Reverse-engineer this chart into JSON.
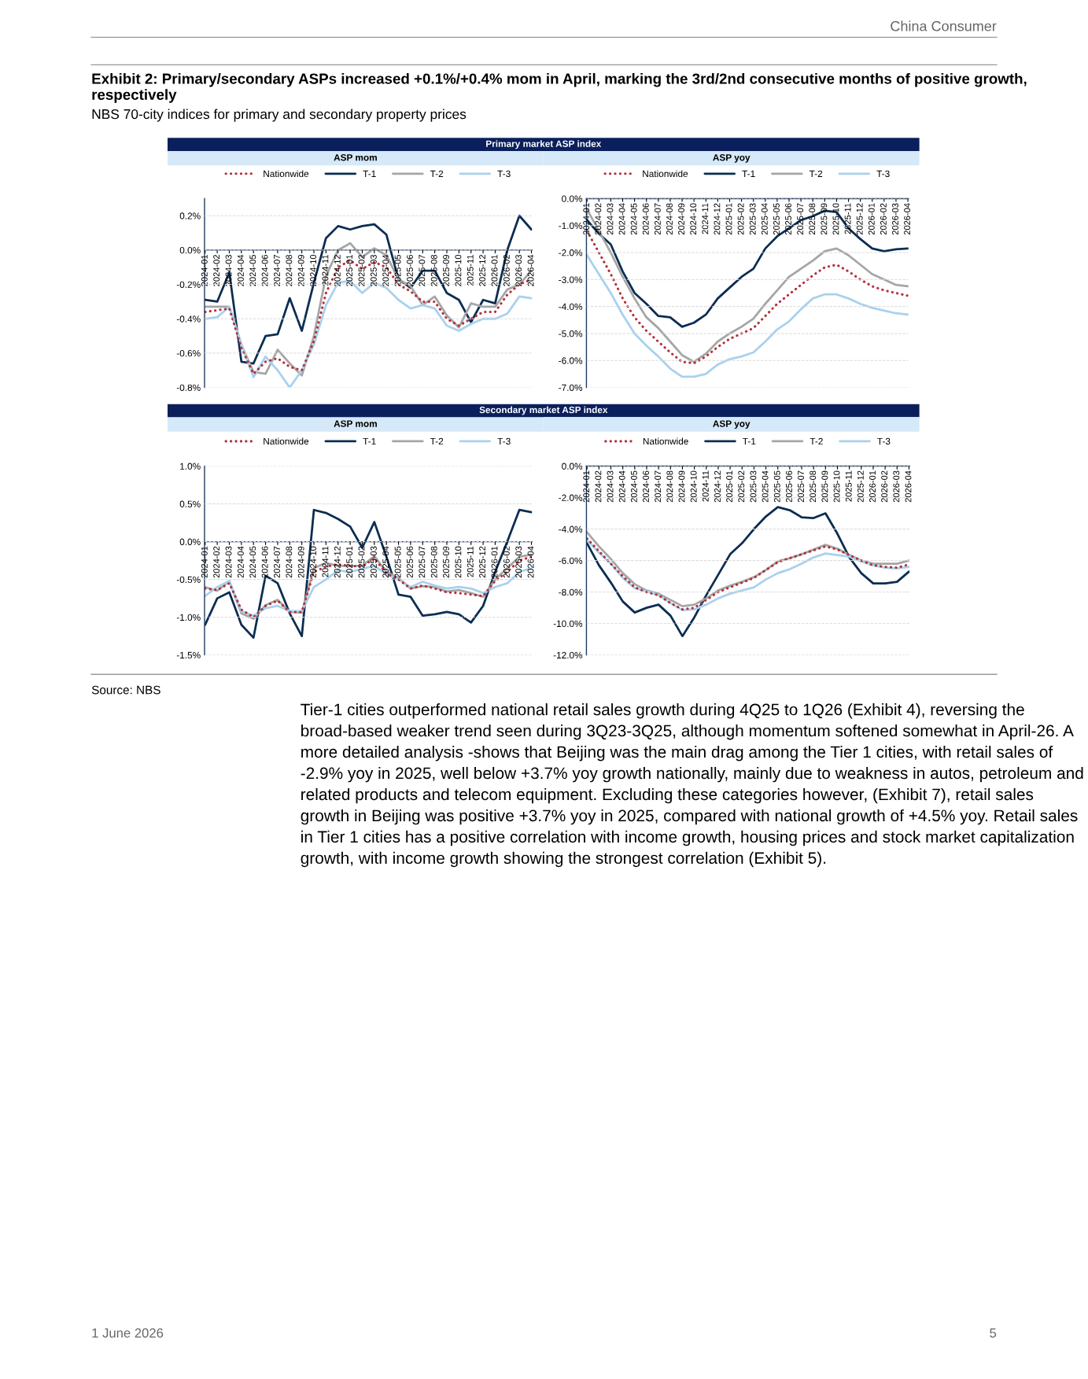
{
  "chart_data": [
    {
      "type": "line",
      "title": "ASP mom",
      "subtitle": "Primary market ASP index",
      "legend": "top",
      "grid": "y",
      "annotations": [
        "China Consumer",
        "Exhibit 2: Primary/secondary ASPs increased +0.1%/+0.4% mom in April, marking the 3rd/2nd consecutive months of positive growth, respectively",
        "NBS 70-city indices for primary and secondary property prices",
        "Source: NBS",
        "Tier-1 cities outperformed national retail sales growth during 4Q25 to 1Q26 (Exhibit 4), reversing the broad-based weaker trend seen during 3Q23-3Q25, although momentum softened somewhat in April-26. A more detailed analysis -shows that Beijing was the main drag among the Tier 1 cities, with retail sales of -2.9% yoy in 2025, well below +3.7% yoy growth nationally, mainly due to weakness in autos, petroleum and related products and telecom equipment. Excluding these categories however, (Exhibit 7), retail sales growth in Beijing was positive +3.7% yoy in 2025, compared with national growth of +4.5% yoy. Retail sales in Tier 1 cities has a positive correlation with income growth, housing prices and stock market capitalization growth, with income growth showing the strongest correlation (Exhibit 5).",
        "1 June 2026",
        "5"
      ],
      "categories": [
        "2024-01",
        "2024-02",
        "2024-03",
        "2024-04",
        "2024-05",
        "2024-06",
        "2024-07",
        "2024-08",
        "2024-09",
        "2024-10",
        "2024-11",
        "2024-12",
        "2025-01",
        "2025-02",
        "2025-03",
        "2025-04",
        "2025-05",
        "2025-06",
        "2025-07",
        "2025-08",
        "2025-09",
        "2025-10",
        "2025-11",
        "2025-12",
        "2026-01",
        "2026-02",
        "2026-03",
        "2026-04"
      ],
      "ylim": [
        -0.8,
        0.3
      ],
      "yticks": [
        {
          "value": -0.8,
          "label": "-0.8%"
        },
        {
          "value": -0.6,
          "label": "-0.6%"
        },
        {
          "value": -0.4,
          "label": "-0.4%"
        },
        {
          "value": -0.2,
          "label": "-0.2%"
        },
        {
          "value": 0,
          "label": "0.0%"
        },
        {
          "value": 0.2,
          "label": "0.2%"
        }
      ],
      "series": [
        {
          "name": "Nationwide",
          "color": "#b3303a",
          "line_style": "dotted",
          "values": [
            -0.36,
            -0.35,
            -0.34,
            -0.57,
            -0.72,
            -0.65,
            -0.63,
            -0.68,
            -0.7,
            -0.53,
            -0.25,
            -0.1,
            -0.06,
            -0.11,
            -0.07,
            -0.1,
            -0.2,
            -0.24,
            -0.3,
            -0.3,
            -0.4,
            -0.44,
            -0.4,
            -0.36,
            -0.36,
            -0.26,
            -0.2,
            -0.17
          ]
        },
        {
          "name": "T-1",
          "color": "#0b2d52",
          "line_style": "solid",
          "values": [
            -0.29,
            -0.3,
            -0.13,
            -0.65,
            -0.66,
            -0.5,
            -0.49,
            -0.28,
            -0.47,
            -0.19,
            0.07,
            0.14,
            0.12,
            0.14,
            0.15,
            0.09,
            -0.17,
            -0.22,
            -0.12,
            -0.12,
            -0.25,
            -0.29,
            -0.42,
            -0.29,
            -0.31,
            0.0,
            0.2,
            0.12
          ]
        },
        {
          "name": "T-2",
          "color": "#a6a6a6",
          "line_style": "solid",
          "values": [
            -0.33,
            -0.33,
            -0.33,
            -0.55,
            -0.71,
            -0.72,
            -0.58,
            -0.66,
            -0.73,
            -0.5,
            -0.15,
            0.0,
            0.04,
            -0.04,
            0.01,
            -0.03,
            -0.17,
            -0.21,
            -0.32,
            -0.27,
            -0.38,
            -0.45,
            -0.31,
            -0.33,
            -0.33,
            -0.23,
            -0.2,
            -0.12
          ]
        },
        {
          "name": "T-3",
          "color": "#a9d1ee",
          "line_style": "solid",
          "values": [
            -0.4,
            -0.39,
            -0.33,
            -0.55,
            -0.74,
            -0.62,
            -0.7,
            -0.8,
            -0.7,
            -0.55,
            -0.32,
            -0.19,
            -0.18,
            -0.25,
            -0.19,
            -0.22,
            -0.29,
            -0.34,
            -0.32,
            -0.34,
            -0.44,
            -0.47,
            -0.43,
            -0.4,
            -0.4,
            -0.37,
            -0.27,
            -0.28
          ]
        }
      ]
    },
    {
      "type": "line",
      "title": "ASP yoy",
      "legend": "top",
      "grid": "y",
      "categories": [
        "2024-01",
        "2024-02",
        "2024-03",
        "2024-04",
        "2024-05",
        "2024-06",
        "2024-07",
        "2024-08",
        "2024-09",
        "2024-10",
        "2024-11",
        "2024-12",
        "2025-01",
        "2025-02",
        "2025-03",
        "2025-04",
        "2025-05",
        "2025-06",
        "2025-07",
        "2025-08",
        "2025-09",
        "2025-10",
        "2025-11",
        "2025-12",
        "2026-01",
        "2026-02",
        "2026-03",
        "2026-04"
      ],
      "ylim": [
        -7,
        0
      ],
      "yticks": [
        {
          "value": -7,
          "label": "-7.0%"
        },
        {
          "value": -6,
          "label": "-6.0%"
        },
        {
          "value": -5,
          "label": "-5.0%"
        },
        {
          "value": -4,
          "label": "-4.0%"
        },
        {
          "value": -3,
          "label": "-3.0%"
        },
        {
          "value": -2,
          "label": "-2.0%"
        },
        {
          "value": -1,
          "label": "-1.0%"
        },
        {
          "value": 0,
          "label": "0.0%"
        }
      ],
      "series": [
        {
          "name": "Nationwide",
          "color": "#b3303a",
          "line_style": "dotted",
          "values": [
            -1.2,
            -2.0,
            -2.8,
            -3.7,
            -4.4,
            -4.9,
            -5.3,
            -5.7,
            -6.05,
            -6.1,
            -5.85,
            -5.5,
            -5.2,
            -5.0,
            -4.8,
            -4.35,
            -3.9,
            -3.55,
            -3.2,
            -2.85,
            -2.55,
            -2.45,
            -2.7,
            -3.0,
            -3.25,
            -3.4,
            -3.5,
            -3.6
          ]
        },
        {
          "name": "T-1",
          "color": "#0b2d52",
          "line_style": "solid",
          "values": [
            -0.8,
            -1.3,
            -1.7,
            -2.7,
            -3.5,
            -3.9,
            -4.35,
            -4.4,
            -4.75,
            -4.6,
            -4.3,
            -3.7,
            -3.3,
            -2.9,
            -2.6,
            -1.85,
            -1.4,
            -1.1,
            -0.8,
            -0.65,
            -0.45,
            -0.5,
            -1.1,
            -1.5,
            -1.85,
            -1.95,
            -1.88,
            -1.85
          ]
        },
        {
          "name": "T-2",
          "color": "#a6a6a6",
          "line_style": "solid",
          "values": [
            -0.4,
            -1.2,
            -2.0,
            -2.9,
            -3.7,
            -4.4,
            -4.8,
            -5.3,
            -5.8,
            -6.05,
            -5.75,
            -5.3,
            -5.0,
            -4.75,
            -4.45,
            -3.9,
            -3.4,
            -2.9,
            -2.6,
            -2.3,
            -1.95,
            -1.85,
            -2.1,
            -2.45,
            -2.8,
            -3.0,
            -3.2,
            -3.25
          ]
        },
        {
          "name": "T-3",
          "color": "#a9d1ee",
          "line_style": "solid",
          "values": [
            -2.1,
            -2.8,
            -3.5,
            -4.3,
            -5.0,
            -5.45,
            -5.85,
            -6.3,
            -6.6,
            -6.6,
            -6.5,
            -6.15,
            -5.95,
            -5.85,
            -5.7,
            -5.3,
            -4.85,
            -4.55,
            -4.1,
            -3.7,
            -3.55,
            -3.55,
            -3.7,
            -3.9,
            -4.05,
            -4.15,
            -4.25,
            -4.3
          ]
        }
      ]
    },
    {
      "type": "line",
      "title": "ASP mom",
      "subtitle": "Secondary market ASP index",
      "legend": "top",
      "grid": "y",
      "categories": [
        "2024-01",
        "2024-02",
        "2024-03",
        "2024-04",
        "2024-05",
        "2024-06",
        "2024-07",
        "2024-08",
        "2024-09",
        "2024-10",
        "2024-11",
        "2024-12",
        "2025-01",
        "2025-02",
        "2025-03",
        "2025-04",
        "2025-05",
        "2025-06",
        "2025-07",
        "2025-08",
        "2025-09",
        "2025-10",
        "2025-11",
        "2025-12",
        "2026-01",
        "2026-02",
        "2026-03",
        "2026-04"
      ],
      "ylim": [
        -1.5,
        1.0
      ],
      "yticks": [
        {
          "value": -1.5,
          "label": "-1.5%"
        },
        {
          "value": -1.0,
          "label": "-1.0%"
        },
        {
          "value": -0.5,
          "label": "-0.5%"
        },
        {
          "value": 0,
          "label": "0.0%"
        },
        {
          "value": 0.5,
          "label": "0.5%"
        },
        {
          "value": 1.0,
          "label": "1.0%"
        }
      ],
      "series": [
        {
          "name": "Nationwide",
          "color": "#b3303a",
          "line_style": "dotted",
          "values": [
            -0.62,
            -0.64,
            -0.55,
            -0.9,
            -1.0,
            -0.85,
            -0.78,
            -0.93,
            -0.93,
            -0.4,
            -0.33,
            -0.3,
            -0.32,
            -0.33,
            -0.22,
            -0.42,
            -0.5,
            -0.62,
            -0.58,
            -0.62,
            -0.67,
            -0.68,
            -0.7,
            -0.72,
            -0.52,
            -0.4,
            -0.25,
            -0.2
          ]
        },
        {
          "name": "T-1",
          "color": "#0b2d52",
          "line_style": "solid",
          "values": [
            -1.1,
            -0.75,
            -0.67,
            -1.1,
            -1.27,
            -0.45,
            -0.55,
            -0.95,
            -1.25,
            0.42,
            0.38,
            0.3,
            0.2,
            -0.08,
            0.26,
            -0.2,
            -0.7,
            -0.73,
            -0.98,
            -0.96,
            -0.93,
            -0.96,
            -1.07,
            -0.85,
            -0.4,
            0.0,
            0.42,
            0.39
          ]
        },
        {
          "name": "T-2",
          "color": "#a6a6a6",
          "line_style": "solid",
          "values": [
            -0.6,
            -0.65,
            -0.52,
            -0.95,
            -1.02,
            -0.84,
            -0.77,
            -0.93,
            -0.94,
            -0.35,
            -0.28,
            -0.32,
            -0.32,
            -0.32,
            -0.19,
            -0.4,
            -0.48,
            -0.62,
            -0.59,
            -0.6,
            -0.66,
            -0.64,
            -0.68,
            -0.73,
            -0.5,
            -0.35,
            -0.2,
            -0.17
          ]
        },
        {
          "name": "T-3",
          "color": "#a9d1ee",
          "line_style": "solid",
          "values": [
            -0.72,
            -0.6,
            -0.52,
            -0.92,
            -0.98,
            -0.88,
            -0.85,
            -0.92,
            -0.92,
            -0.6,
            -0.5,
            -0.38,
            -0.4,
            -0.36,
            -0.32,
            -0.43,
            -0.5,
            -0.6,
            -0.53,
            -0.58,
            -0.62,
            -0.6,
            -0.62,
            -0.68,
            -0.6,
            -0.55,
            -0.4,
            -0.35
          ]
        }
      ]
    },
    {
      "type": "line",
      "title": "ASP yoy",
      "legend": "top",
      "grid": "y",
      "categories": [
        "2024-01",
        "2024-02",
        "2024-03",
        "2024-04",
        "2024-05",
        "2024-06",
        "2024-07",
        "2024-08",
        "2024-09",
        "2024-10",
        "2024-11",
        "2024-12",
        "2025-01",
        "2025-02",
        "2025-03",
        "2025-04",
        "2025-05",
        "2025-06",
        "2025-07",
        "2025-08",
        "2025-09",
        "2025-10",
        "2025-11",
        "2025-12",
        "2026-01",
        "2026-02",
        "2026-03",
        "2026-04"
      ],
      "ylim": [
        -12,
        0
      ],
      "yticks": [
        {
          "value": -12,
          "label": "-12.0%"
        },
        {
          "value": -10,
          "label": "-10.0%"
        },
        {
          "value": -8,
          "label": "-8.0%"
        },
        {
          "value": -6,
          "label": "-6.0%"
        },
        {
          "value": -4,
          "label": "-4.0%"
        },
        {
          "value": -2,
          "label": "-2.0%"
        },
        {
          "value": 0,
          "label": "0.0%"
        }
      ],
      "series": [
        {
          "name": "Nationwide",
          "color": "#b3303a",
          "line_style": "dotted",
          "values": [
            -4.6,
            -5.4,
            -6.2,
            -7.0,
            -7.7,
            -8.0,
            -8.2,
            -8.7,
            -9.1,
            -9.0,
            -8.5,
            -8.0,
            -7.7,
            -7.4,
            -7.1,
            -6.6,
            -6.1,
            -5.85,
            -5.6,
            -5.35,
            -5.1,
            -5.3,
            -5.65,
            -6.0,
            -6.3,
            -6.4,
            -6.45,
            -6.25
          ]
        },
        {
          "name": "T-1",
          "color": "#0b2d52",
          "line_style": "solid",
          "values": [
            -4.9,
            -6.3,
            -7.4,
            -8.6,
            -9.3,
            -9.0,
            -8.8,
            -9.5,
            -10.8,
            -9.6,
            -8.2,
            -6.9,
            -5.6,
            -4.9,
            -4.0,
            -3.2,
            -2.6,
            -2.8,
            -3.25,
            -3.3,
            -3.0,
            -4.3,
            -5.8,
            -6.8,
            -7.45,
            -7.45,
            -7.35,
            -6.7
          ]
        },
        {
          "name": "T-2",
          "color": "#a6a6a6",
          "line_style": "solid",
          "values": [
            -4.2,
            -5.1,
            -5.9,
            -6.8,
            -7.5,
            -7.9,
            -8.1,
            -8.5,
            -8.9,
            -8.8,
            -8.4,
            -7.9,
            -7.6,
            -7.35,
            -7.05,
            -6.6,
            -6.05,
            -5.85,
            -5.6,
            -5.3,
            -5.0,
            -5.25,
            -5.65,
            -6.0,
            -6.2,
            -6.2,
            -6.2,
            -6.0
          ]
        },
        {
          "name": "T-3",
          "color": "#a9d1ee",
          "line_style": "solid",
          "values": [
            -4.7,
            -5.5,
            -6.2,
            -7.1,
            -7.75,
            -7.95,
            -8.2,
            -8.7,
            -9.15,
            -9.1,
            -8.8,
            -8.4,
            -8.1,
            -7.9,
            -7.7,
            -7.2,
            -6.8,
            -6.55,
            -6.2,
            -5.8,
            -5.55,
            -5.65,
            -5.75,
            -6.05,
            -6.3,
            -6.45,
            -6.5,
            -6.4
          ]
        }
      ]
    }
  ]
}
